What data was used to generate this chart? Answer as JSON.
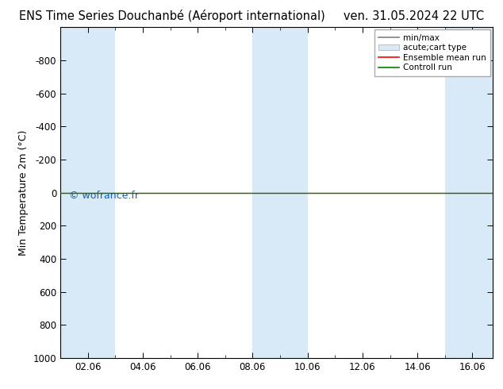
{
  "title_left": "ENS Time Series Douchanbé (Aéroport international)",
  "title_right": "ven. 31.05.2024 22 UTC",
  "ylabel": "Min Temperature 2m (°C)",
  "ylim_top": -1000,
  "ylim_bottom": 1000,
  "yticks": [
    -800,
    -600,
    -400,
    -200,
    0,
    200,
    400,
    600,
    800,
    1000
  ],
  "xlim_left": 1.0,
  "xlim_right": 16.75,
  "xtick_positions": [
    2,
    4,
    6,
    8,
    10,
    12,
    14,
    16
  ],
  "xtick_labels": [
    "02.06",
    "04.06",
    "06.06",
    "08.06",
    "10.06",
    "12.06",
    "14.06",
    "16.06"
  ],
  "shaded_columns": [
    [
      1.0,
      2.0
    ],
    [
      2.0,
      3.0
    ],
    [
      8.0,
      9.0
    ],
    [
      9.0,
      10.0
    ],
    [
      15.0,
      16.0
    ],
    [
      16.0,
      16.75
    ]
  ],
  "control_run_y": 0.0,
  "ensemble_mean_y": 0.0,
  "copyright_text": "© wofrance.fr",
  "copyright_color": "#1060c0",
  "shaded_color": "#d8eaf8",
  "background_color": "#ffffff",
  "title_fontsize": 10.5,
  "tick_fontsize": 8.5,
  "ylabel_fontsize": 9,
  "legend_fontsize": 7.5
}
